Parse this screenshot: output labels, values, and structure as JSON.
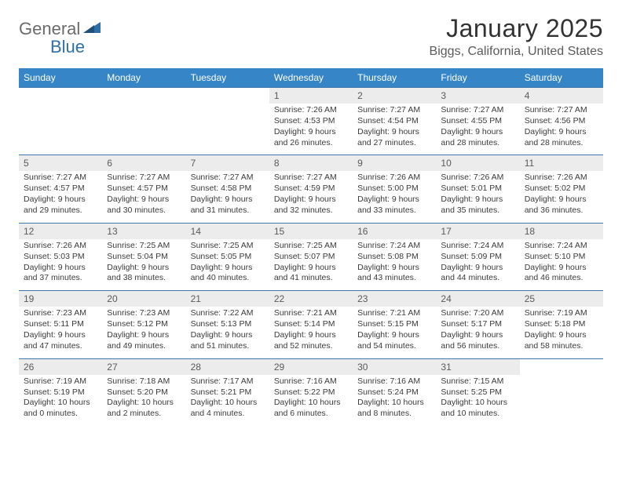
{
  "brand": {
    "general": "General",
    "blue": "Blue"
  },
  "title": "January 2025",
  "location": "Biggs, California, United States",
  "weekdays": [
    "Sunday",
    "Monday",
    "Tuesday",
    "Wednesday",
    "Thursday",
    "Friday",
    "Saturday"
  ],
  "colors": {
    "header_bg": "#3685c6",
    "header_text": "#ffffff",
    "daynum_bg": "#ececec",
    "rule": "#3a77ad",
    "brand_gray": "#6b6b6b",
    "brand_blue": "#2f6fa8"
  },
  "weeks": [
    [
      {
        "n": "",
        "sr": "",
        "ss": "",
        "dl": ""
      },
      {
        "n": "",
        "sr": "",
        "ss": "",
        "dl": ""
      },
      {
        "n": "",
        "sr": "",
        "ss": "",
        "dl": ""
      },
      {
        "n": "1",
        "sr": "7:26 AM",
        "ss": "4:53 PM",
        "dl": "9 hours and 26 minutes."
      },
      {
        "n": "2",
        "sr": "7:27 AM",
        "ss": "4:54 PM",
        "dl": "9 hours and 27 minutes."
      },
      {
        "n": "3",
        "sr": "7:27 AM",
        "ss": "4:55 PM",
        "dl": "9 hours and 28 minutes."
      },
      {
        "n": "4",
        "sr": "7:27 AM",
        "ss": "4:56 PM",
        "dl": "9 hours and 28 minutes."
      }
    ],
    [
      {
        "n": "5",
        "sr": "7:27 AM",
        "ss": "4:57 PM",
        "dl": "9 hours and 29 minutes."
      },
      {
        "n": "6",
        "sr": "7:27 AM",
        "ss": "4:57 PM",
        "dl": "9 hours and 30 minutes."
      },
      {
        "n": "7",
        "sr": "7:27 AM",
        "ss": "4:58 PM",
        "dl": "9 hours and 31 minutes."
      },
      {
        "n": "8",
        "sr": "7:27 AM",
        "ss": "4:59 PM",
        "dl": "9 hours and 32 minutes."
      },
      {
        "n": "9",
        "sr": "7:26 AM",
        "ss": "5:00 PM",
        "dl": "9 hours and 33 minutes."
      },
      {
        "n": "10",
        "sr": "7:26 AM",
        "ss": "5:01 PM",
        "dl": "9 hours and 35 minutes."
      },
      {
        "n": "11",
        "sr": "7:26 AM",
        "ss": "5:02 PM",
        "dl": "9 hours and 36 minutes."
      }
    ],
    [
      {
        "n": "12",
        "sr": "7:26 AM",
        "ss": "5:03 PM",
        "dl": "9 hours and 37 minutes."
      },
      {
        "n": "13",
        "sr": "7:25 AM",
        "ss": "5:04 PM",
        "dl": "9 hours and 38 minutes."
      },
      {
        "n": "14",
        "sr": "7:25 AM",
        "ss": "5:05 PM",
        "dl": "9 hours and 40 minutes."
      },
      {
        "n": "15",
        "sr": "7:25 AM",
        "ss": "5:07 PM",
        "dl": "9 hours and 41 minutes."
      },
      {
        "n": "16",
        "sr": "7:24 AM",
        "ss": "5:08 PM",
        "dl": "9 hours and 43 minutes."
      },
      {
        "n": "17",
        "sr": "7:24 AM",
        "ss": "5:09 PM",
        "dl": "9 hours and 44 minutes."
      },
      {
        "n": "18",
        "sr": "7:24 AM",
        "ss": "5:10 PM",
        "dl": "9 hours and 46 minutes."
      }
    ],
    [
      {
        "n": "19",
        "sr": "7:23 AM",
        "ss": "5:11 PM",
        "dl": "9 hours and 47 minutes."
      },
      {
        "n": "20",
        "sr": "7:23 AM",
        "ss": "5:12 PM",
        "dl": "9 hours and 49 minutes."
      },
      {
        "n": "21",
        "sr": "7:22 AM",
        "ss": "5:13 PM",
        "dl": "9 hours and 51 minutes."
      },
      {
        "n": "22",
        "sr": "7:21 AM",
        "ss": "5:14 PM",
        "dl": "9 hours and 52 minutes."
      },
      {
        "n": "23",
        "sr": "7:21 AM",
        "ss": "5:15 PM",
        "dl": "9 hours and 54 minutes."
      },
      {
        "n": "24",
        "sr": "7:20 AM",
        "ss": "5:17 PM",
        "dl": "9 hours and 56 minutes."
      },
      {
        "n": "25",
        "sr": "7:19 AM",
        "ss": "5:18 PM",
        "dl": "9 hours and 58 minutes."
      }
    ],
    [
      {
        "n": "26",
        "sr": "7:19 AM",
        "ss": "5:19 PM",
        "dl": "10 hours and 0 minutes."
      },
      {
        "n": "27",
        "sr": "7:18 AM",
        "ss": "5:20 PM",
        "dl": "10 hours and 2 minutes."
      },
      {
        "n": "28",
        "sr": "7:17 AM",
        "ss": "5:21 PM",
        "dl": "10 hours and 4 minutes."
      },
      {
        "n": "29",
        "sr": "7:16 AM",
        "ss": "5:22 PM",
        "dl": "10 hours and 6 minutes."
      },
      {
        "n": "30",
        "sr": "7:16 AM",
        "ss": "5:24 PM",
        "dl": "10 hours and 8 minutes."
      },
      {
        "n": "31",
        "sr": "7:15 AM",
        "ss": "5:25 PM",
        "dl": "10 hours and 10 minutes."
      },
      {
        "n": "",
        "sr": "",
        "ss": "",
        "dl": ""
      }
    ]
  ],
  "labels": {
    "sunrise": "Sunrise:",
    "sunset": "Sunset:",
    "daylight": "Daylight:"
  }
}
